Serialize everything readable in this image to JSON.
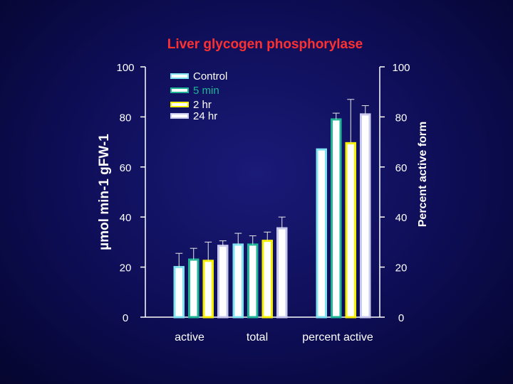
{
  "chart_data": {
    "type": "bar",
    "title": "Liver glycogen phosphorylase",
    "categories": [
      "active",
      "total",
      "percent active"
    ],
    "series": [
      {
        "name": "Control",
        "color": "#7fe3f0",
        "values": [
          20,
          29,
          67
        ],
        "errors": [
          5.5,
          4.5,
          0
        ]
      },
      {
        "name": "5 min",
        "color": "#1fb596",
        "values": [
          23,
          29,
          79
        ],
        "errors": [
          4.5,
          3.5,
          2.5
        ]
      },
      {
        "name": "2 hr",
        "color": "#f5f000",
        "values": [
          22.5,
          30.5,
          69.5
        ],
        "errors": [
          7.5,
          3.5,
          17.5
        ]
      },
      {
        "name": "24 hr",
        "color": "#c9c9ee",
        "values": [
          28.5,
          35.5,
          81
        ],
        "errors": [
          2,
          4.5,
          3.5
        ]
      }
    ],
    "ylabel_left": "µmol min-1 gFW-1",
    "ylabel_right": "Percent active form",
    "ylim": [
      0,
      100
    ],
    "yticks": [
      0,
      20,
      40,
      60,
      80,
      100
    ]
  },
  "colors": {
    "title": "#ff3030",
    "axis": "#ffffff",
    "text": "#ffffff",
    "errorbar": "#e6e6e6"
  }
}
